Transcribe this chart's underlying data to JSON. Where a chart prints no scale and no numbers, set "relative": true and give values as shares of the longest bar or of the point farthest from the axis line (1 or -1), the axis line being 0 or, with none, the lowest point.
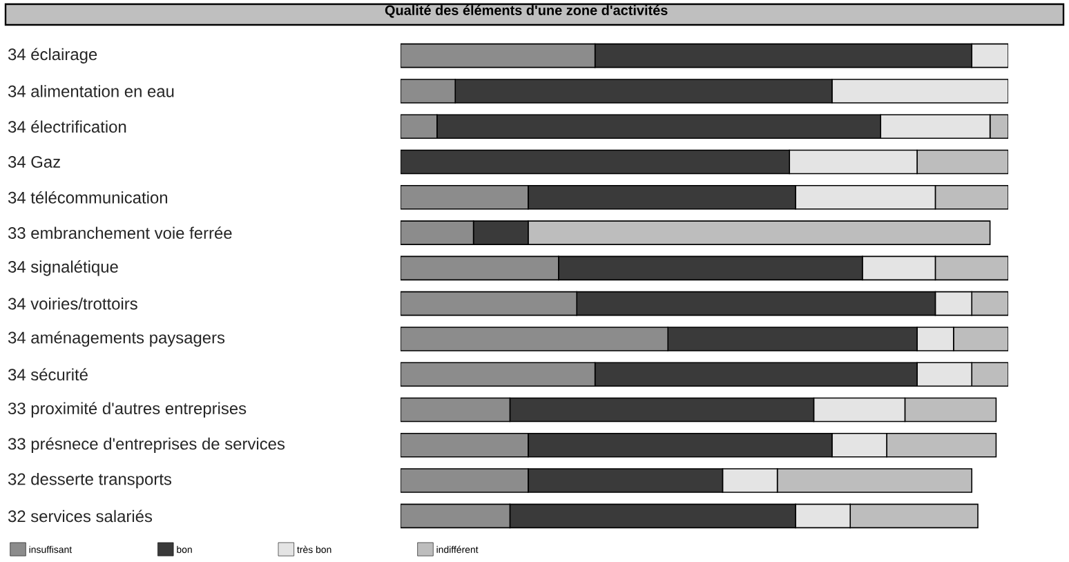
{
  "chart_data": {
    "type": "bar",
    "title": "Qualité des éléments d'une zone d'activités",
    "orientation": "horizontal",
    "stacked": true,
    "relative": true,
    "categories": [
      "34  éclairage",
      "34  alimentation en eau",
      "34  électrification",
      "34  Gaz",
      "34  télécommunication",
      "33  embranchement voie ferrée",
      "34  signalétique",
      "34  voiries/trottoirs",
      "34  aménagements paysagers",
      "34  sécurité",
      "33  proximité d'autres entreprises",
      "33  présnece d'entreprises de services",
      "32  desserte transports",
      "32  services salariés"
    ],
    "series": [
      {
        "name": "insuffisant",
        "color": "#8c8c8c",
        "values": [
          0.32,
          0.09,
          0.06,
          0,
          0.21,
          0.12,
          0.26,
          0.29,
          0.44,
          0.32,
          0.18,
          0.21,
          0.21,
          0.18
        ]
      },
      {
        "name": "bon",
        "color": "#3a3a3a",
        "values": [
          0.62,
          0.62,
          0.73,
          0.64,
          0.44,
          0.09,
          0.5,
          0.59,
          0.41,
          0.53,
          0.5,
          0.5,
          0.32,
          0.47
        ]
      },
      {
        "name": "très bon",
        "color": "#e4e4e4",
        "values": [
          0.06,
          0.29,
          0.18,
          0.21,
          0.23,
          0,
          0.12,
          0.06,
          0.06,
          0.09,
          0.15,
          0.09,
          0.09,
          0.09
        ]
      },
      {
        "name": "indifférent",
        "color": "#bdbdbd",
        "values": [
          0,
          0,
          0.03,
          0.15,
          0.12,
          0.76,
          0.12,
          0.06,
          0.09,
          0.06,
          0.15,
          0.18,
          0.32,
          0.21
        ]
      }
    ],
    "legend": "bottom"
  }
}
